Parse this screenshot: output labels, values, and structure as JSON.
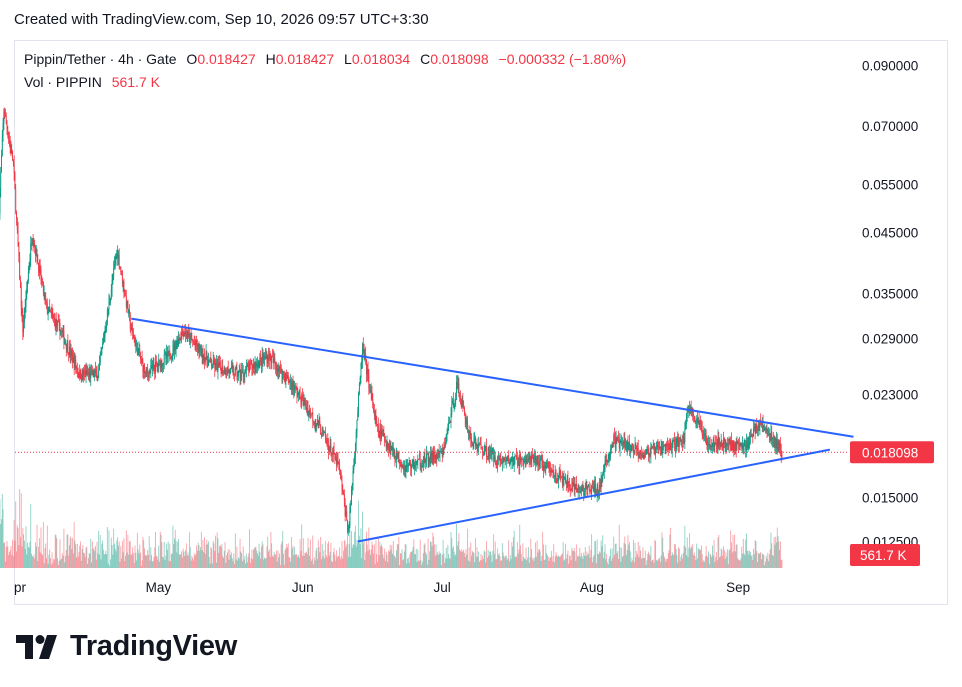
{
  "header": {
    "created_text": "Created with TradingView.com, Sep 10, 2026 09:57 UTC+3:30"
  },
  "legend": {
    "symbol": "Pippin/Tether · 4h · Gate",
    "open_label": "O",
    "open": "0.018427",
    "high_label": "H",
    "high": "0.018427",
    "low_label": "L",
    "low": "0.018034",
    "close_label": "C",
    "close": "0.018098",
    "change": "−0.000332 (−1.80%)",
    "vol_label": "Vol · PIPPIN",
    "vol_value": "561.7 K"
  },
  "price_badge": "0.018098",
  "volume_badge": "561.7 K",
  "logo_text": "TradingView",
  "colors": {
    "up": "#089981",
    "down": "#f23645",
    "trendline": "#2962ff",
    "grid_border": "#e0e3eb"
  },
  "chart_data": {
    "type": "candlestick",
    "title": "Pippin/Tether · 4h · Gate",
    "y_scale": "log",
    "y_ticks": [
      "0.090000",
      "0.070000",
      "0.055000",
      "0.045000",
      "0.035000",
      "0.029000",
      "0.023000",
      "0.018000",
      "0.015000",
      "0.012500"
    ],
    "x_ticks": [
      "Apr",
      "May",
      "Jun",
      "Jul",
      "Aug",
      "Sep"
    ],
    "x_ticks_display": [
      "pr",
      "May",
      "Jun",
      "Jul",
      "Aug",
      "Sep"
    ],
    "ylim": [
      0.0112,
      0.098
    ],
    "last_price": 0.018098,
    "series": [
      {
        "name": "price (approx. path)",
        "points": [
          {
            "date": "2026-03-28",
            "close": 0.05
          },
          {
            "date": "2026-03-29",
            "close": 0.075
          },
          {
            "date": "2026-03-31",
            "close": 0.06
          },
          {
            "date": "2026-04-02",
            "close": 0.03
          },
          {
            "date": "2026-04-04",
            "close": 0.045
          },
          {
            "date": "2026-04-07",
            "close": 0.033
          },
          {
            "date": "2026-04-10",
            "close": 0.03
          },
          {
            "date": "2026-04-14",
            "close": 0.025
          },
          {
            "date": "2026-04-18",
            "close": 0.025
          },
          {
            "date": "2026-04-22",
            "close": 0.042
          },
          {
            "date": "2026-04-25",
            "close": 0.03
          },
          {
            "date": "2026-04-28",
            "close": 0.025
          },
          {
            "date": "2026-05-03",
            "close": 0.027
          },
          {
            "date": "2026-05-06",
            "close": 0.03
          },
          {
            "date": "2026-05-12",
            "close": 0.026
          },
          {
            "date": "2026-05-18",
            "close": 0.025
          },
          {
            "date": "2026-05-24",
            "close": 0.027
          },
          {
            "date": "2026-05-29",
            "close": 0.024
          },
          {
            "date": "2026-06-04",
            "close": 0.02
          },
          {
            "date": "2026-06-08",
            "close": 0.017
          },
          {
            "date": "2026-06-10",
            "close": 0.013
          },
          {
            "date": "2026-06-13",
            "close": 0.028
          },
          {
            "date": "2026-06-16",
            "close": 0.02
          },
          {
            "date": "2026-06-22",
            "close": 0.017
          },
          {
            "date": "2026-06-30",
            "close": 0.018
          },
          {
            "date": "2026-07-03",
            "close": 0.024
          },
          {
            "date": "2026-07-06",
            "close": 0.019
          },
          {
            "date": "2026-07-12",
            "close": 0.0175
          },
          {
            "date": "2026-07-20",
            "close": 0.0175
          },
          {
            "date": "2026-07-28",
            "close": 0.0155
          },
          {
            "date": "2026-08-02",
            "close": 0.0155
          },
          {
            "date": "2026-08-05",
            "close": 0.019
          },
          {
            "date": "2026-08-12",
            "close": 0.018
          },
          {
            "date": "2026-08-20",
            "close": 0.019
          },
          {
            "date": "2026-08-21",
            "close": 0.022
          },
          {
            "date": "2026-08-25",
            "close": 0.019
          },
          {
            "date": "2026-09-02",
            "close": 0.0185
          },
          {
            "date": "2026-09-05",
            "close": 0.0205
          },
          {
            "date": "2026-09-10",
            "close": 0.0181
          }
        ]
      }
    ],
    "trendlines": [
      {
        "name": "upper",
        "from": {
          "date": "2026-04-25",
          "price": 0.0315
        },
        "to": {
          "date": "2026-09-25",
          "price": 0.0193
        }
      },
      {
        "name": "lower",
        "from": {
          "date": "2026-06-12",
          "price": 0.0125
        },
        "to": {
          "date": "2026-09-20",
          "price": 0.0183
        }
      }
    ]
  }
}
